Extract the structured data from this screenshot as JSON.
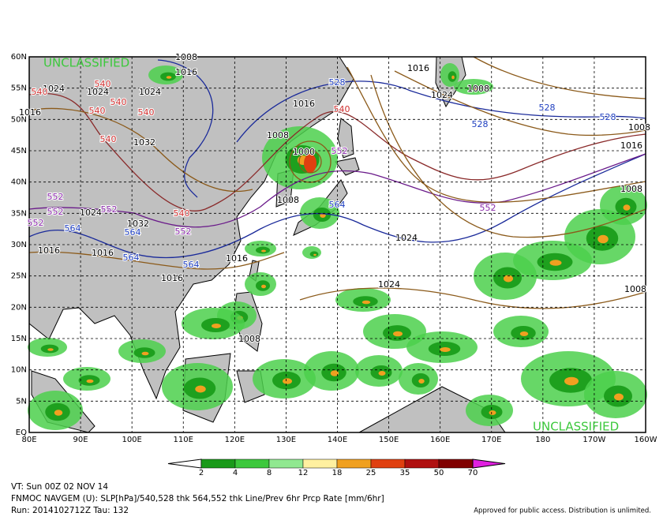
{
  "map": {
    "classification": [
      "UNCLASSIFIED",
      "UNCLASSIFIED"
    ],
    "lat_labels": [
      "60N",
      "55N",
      "50N",
      "45N",
      "40N",
      "35N",
      "30N",
      "25N",
      "20N",
      "15N",
      "10N",
      "5N",
      "EQ"
    ],
    "lon_labels": [
      "80E",
      "90E",
      "100E",
      "110E",
      "120E",
      "130E",
      "140E",
      "150E",
      "160E",
      "170E",
      "180",
      "170W",
      "160W"
    ],
    "pressure_labels": [
      "1008",
      "1016",
      "1024",
      "1024",
      "1024",
      "1032",
      "1016",
      "1016",
      "1024",
      "1008",
      "1000",
      "1008",
      "1024",
      "1016",
      "1024",
      "1032",
      "1016",
      "1016",
      "1016",
      "1016",
      "1008",
      "1024",
      "1016",
      "1008",
      "1008",
      "1008",
      "1008"
    ],
    "t540_labels": [
      "540",
      "540",
      "540",
      "540",
      "540",
      "540",
      "540",
      "540"
    ],
    "t528_labels": [
      "528",
      "528",
      "528",
      "528"
    ],
    "t552_labels": [
      "552",
      "552",
      "552",
      "552",
      "552",
      "552",
      "552"
    ],
    "t564_labels": [
      "564",
      "564",
      "564",
      "564",
      "564"
    ],
    "colorbar_labels": [
      "2",
      "4",
      "8",
      "12",
      "18",
      "25",
      "35",
      "50",
      "70"
    ]
  },
  "footer": {
    "valid_time": "VT: Sun 00Z 02 NOV 14",
    "description": "FNMOC NAVGEM (U): SLP[hPa]/540,528 thk 564,552 thk Line/Prev 6hr Prcp Rate [mm/6hr]",
    "run": "Run: 2014102712Z Tau: 132",
    "approval": "Approved for public access. Distribution is unlimited."
  }
}
